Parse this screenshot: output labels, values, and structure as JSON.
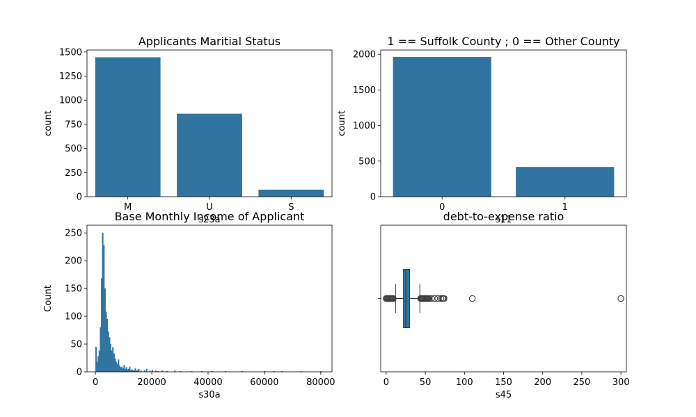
{
  "colors": {
    "bar": "#3274a1",
    "outlier_stroke": "#3d3d3d",
    "whisker": "#3d3d3d"
  },
  "chart_data": [
    {
      "type": "bar",
      "title": "Applicants Maritial Status",
      "xlabel": "s23a",
      "ylabel": "count",
      "categories": [
        "M",
        "U",
        "S"
      ],
      "values": [
        1445,
        860,
        73
      ],
      "ylim": [
        0,
        1520
      ],
      "yticks": [
        0,
        250,
        500,
        750,
        1000,
        1250,
        1500
      ]
    },
    {
      "type": "bar",
      "title": "1 == Suffolk County ; 0 == Other County",
      "xlabel": "s11",
      "ylabel": "count",
      "categories": [
        "0",
        "1"
      ],
      "values": [
        1962,
        418
      ],
      "ylim": [
        0,
        2060
      ],
      "yticks": [
        0,
        500,
        1000,
        1500,
        2000
      ]
    },
    {
      "type": "histogram",
      "title": "Base Monthly Income of Applicant",
      "xlabel": "s30a",
      "ylabel": "Count",
      "xlim": [
        -3000,
        84000
      ],
      "ylim": [
        0,
        264
      ],
      "xticks": [
        0,
        20000,
        40000,
        60000,
        80000
      ],
      "yticks": [
        0,
        50,
        100,
        150,
        200,
        250
      ],
      "bin_width": 400,
      "bins": [
        [
          0,
          45
        ],
        [
          400,
          18
        ],
        [
          800,
          28
        ],
        [
          1200,
          38
        ],
        [
          1600,
          80
        ],
        [
          2000,
          168
        ],
        [
          2400,
          250
        ],
        [
          2800,
          228
        ],
        [
          3200,
          150
        ],
        [
          3600,
          108
        ],
        [
          4000,
          95
        ],
        [
          4400,
          72
        ],
        [
          4800,
          62
        ],
        [
          5200,
          50
        ],
        [
          5600,
          38
        ],
        [
          6000,
          44
        ],
        [
          6400,
          33
        ],
        [
          6800,
          24
        ],
        [
          7200,
          18
        ],
        [
          7600,
          14
        ],
        [
          8000,
          22
        ],
        [
          8400,
          11
        ],
        [
          8800,
          8
        ],
        [
          9200,
          9
        ],
        [
          9600,
          6
        ],
        [
          10000,
          12
        ],
        [
          10400,
          5
        ],
        [
          10800,
          8
        ],
        [
          11200,
          4
        ],
        [
          11600,
          5
        ],
        [
          12000,
          9
        ],
        [
          12400,
          3
        ],
        [
          12800,
          4
        ],
        [
          13200,
          2
        ],
        [
          13600,
          3
        ],
        [
          14000,
          6
        ],
        [
          14400,
          2
        ],
        [
          14800,
          3
        ],
        [
          15200,
          5
        ],
        [
          16000,
          2
        ],
        [
          17200,
          3
        ],
        [
          18000,
          5
        ],
        [
          19200,
          2
        ],
        [
          20000,
          3
        ],
        [
          21200,
          2
        ],
        [
          22000,
          1
        ],
        [
          23600,
          2
        ],
        [
          25200,
          1
        ],
        [
          28000,
          2
        ],
        [
          30000,
          1
        ],
        [
          34000,
          1
        ],
        [
          37600,
          1
        ],
        [
          41200,
          1
        ],
        [
          46000,
          1
        ],
        [
          52000,
          1
        ],
        [
          60000,
          1
        ],
        [
          63200,
          1
        ],
        [
          66000,
          1
        ],
        [
          72800,
          1
        ],
        [
          80000,
          1
        ]
      ]
    },
    {
      "type": "box",
      "title": "debt-to-expense ratio",
      "xlabel": "s45",
      "ylabel": "",
      "xlim": [
        -7,
        307
      ],
      "xticks": [
        0,
        50,
        100,
        150,
        200,
        250,
        300
      ],
      "box": {
        "whisker_low": 12,
        "q1": 22,
        "median": 25,
        "q3": 30,
        "whisker_high": 43
      },
      "outliers": [
        0,
        1,
        2,
        3,
        4,
        5,
        6,
        7,
        8,
        9,
        44,
        45,
        46,
        47,
        48,
        49,
        50,
        51,
        52,
        53,
        54,
        55,
        58,
        62,
        66,
        70,
        72,
        73,
        74,
        110,
        300
      ]
    }
  ]
}
